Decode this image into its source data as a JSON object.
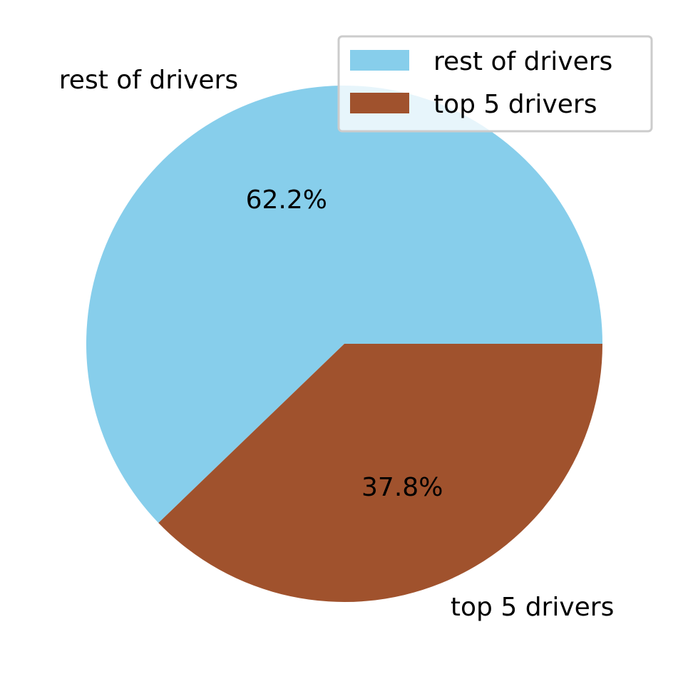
{
  "chart_data": {
    "type": "pie",
    "labels": [
      "rest of drivers",
      "top 5 drivers"
    ],
    "values": [
      62.2,
      37.8
    ],
    "percent_labels": [
      "62.2%",
      "37.8%"
    ],
    "colors": [
      "#87CEEB",
      "#A0522D"
    ],
    "start_angle_deg": 0,
    "direction": "counterclockwise",
    "legend": {
      "placement": "upper-right",
      "entries": [
        "rest of drivers",
        "top 5 drivers"
      ]
    }
  }
}
